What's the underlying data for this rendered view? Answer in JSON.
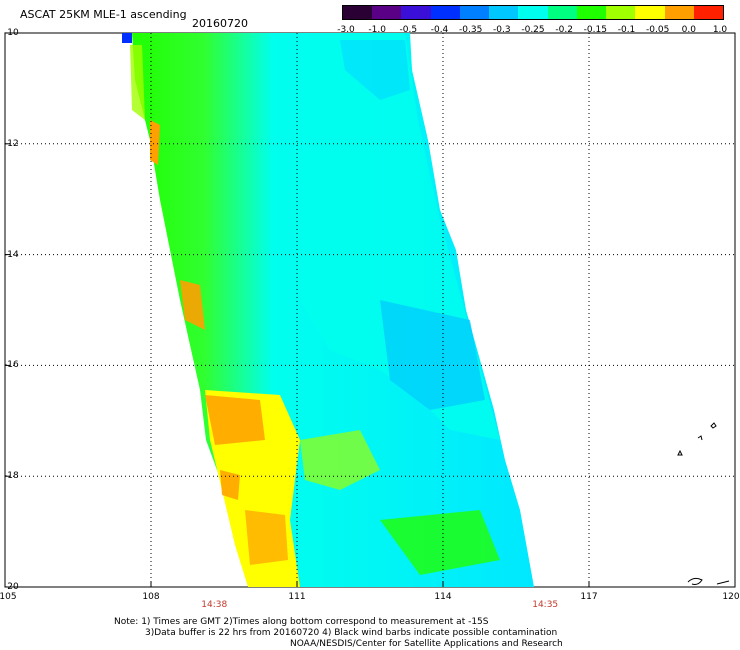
{
  "header": {
    "title": "ASCAT 25KM MLE-1 ascending",
    "date": "20160720"
  },
  "colorbar": {
    "labels": [
      "-3.0",
      "-1.0",
      "-0.5",
      "-0.4",
      "-0.35",
      "-0.3",
      "-0.25",
      "-0.2",
      "-0.15",
      "-0.1",
      "-0.05",
      "0.0",
      "1.0"
    ],
    "colors": [
      "#2a0034",
      "#5a0087",
      "#3a10d8",
      "#0030ff",
      "#0080ff",
      "#00c8ff",
      "#00ffee",
      "#00ff80",
      "#20ff00",
      "#a0ff00",
      "#ffff00",
      "#ffa000",
      "#ff2000"
    ]
  },
  "map": {
    "lat_labels": [
      "-10",
      "-12",
      "-14",
      "-16",
      "-18",
      "-20"
    ],
    "lon_labels": [
      "105",
      "108",
      "111",
      "114",
      "117",
      "120"
    ],
    "lat_values": [
      -10,
      -12,
      -14,
      -16,
      -18,
      -20
    ],
    "lon_values": [
      105,
      108,
      111,
      114,
      117,
      120
    ],
    "lat_range": [
      -20,
      -10
    ],
    "lon_range": [
      105,
      120
    ],
    "grid": "dotted",
    "time_labels": [
      {
        "text": "14:38",
        "lon": 109.3
      },
      {
        "text": "14:35",
        "lon": 116.1
      }
    ]
  },
  "notes": {
    "line1": "Note: 1) Times are GMT 2)Times along bottom correspond to measurement at -15S",
    "line2": "3)Data buffer is 22 hrs from 20160720 4) Black wind barbs indicate possible contamination",
    "line3": "NOAA/NESDIS/Center for Satellite Applications and Research"
  }
}
